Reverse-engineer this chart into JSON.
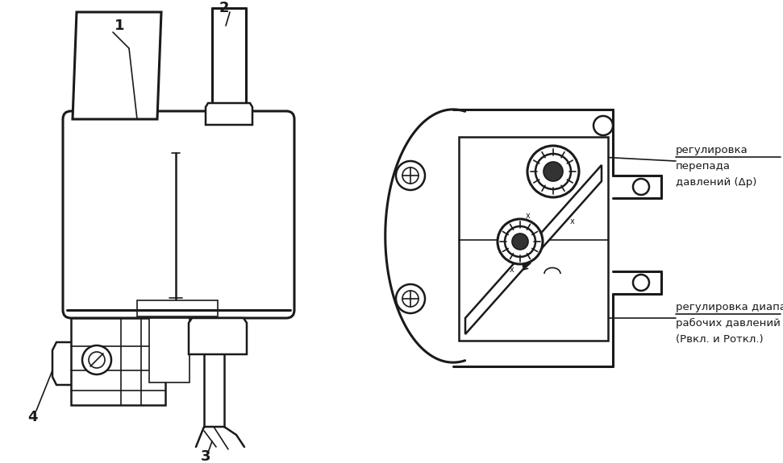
{
  "bg_color": "#ffffff",
  "line_color": "#1a1a1a",
  "fig_width": 9.71,
  "fig_height": 5.75,
  "label1": "1",
  "label2": "2",
  "label3": "3",
  "label4": "4",
  "ann1_l1": "регулировка",
  "ann1_l2": "перепада",
  "ann1_l3": "давлений (Δp)",
  "ann2_l1": "регулировка диапазона",
  "ann2_l2": "рабочих давлений",
  "ann2_l3": "(Рвкл. и Роткл.)"
}
